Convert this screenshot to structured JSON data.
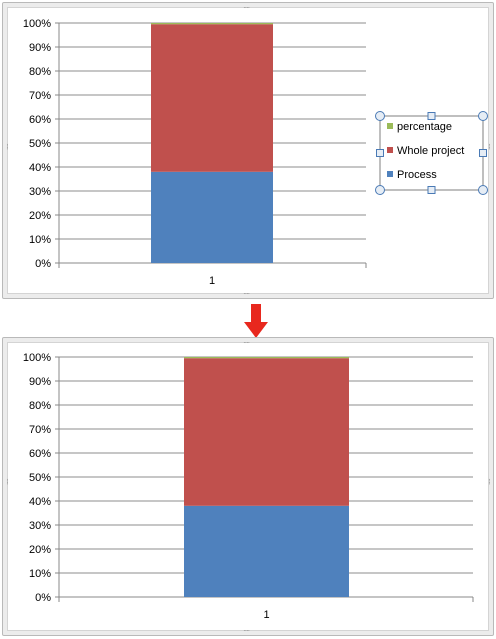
{
  "charts": [
    {
      "show_legend": true,
      "legend": [
        "percentage",
        "Whole project",
        "Process"
      ],
      "ticks": [
        "0%",
        "10%",
        "20%",
        "30%",
        "40%",
        "50%",
        "60%",
        "70%",
        "80%",
        "90%",
        "100%"
      ]
    },
    {
      "show_legend": false,
      "ticks": [
        "0%",
        "10%",
        "20%",
        "30%",
        "40%",
        "50%",
        "60%",
        "70%",
        "80%",
        "90%",
        "100%"
      ]
    }
  ],
  "chart_data": [
    {
      "type": "bar",
      "stacked": "percent",
      "categories": [
        "1"
      ],
      "series": [
        {
          "name": "Process",
          "values": [
            38
          ],
          "color": "#4f81bd"
        },
        {
          "name": "Whole project",
          "values": [
            61.5
          ],
          "color": "#c0504d"
        },
        {
          "name": "percentage",
          "values": [
            0.5
          ],
          "color": "#9bbb59"
        }
      ],
      "ylim": [
        0,
        100
      ],
      "grid": true,
      "legend_position": "right",
      "legend_selected": true
    },
    {
      "type": "bar",
      "stacked": "percent",
      "categories": [
        "1"
      ],
      "series": [
        {
          "name": "Process",
          "values": [
            38
          ],
          "color": "#4f81bd"
        },
        {
          "name": "Whole project",
          "values": [
            61.5
          ],
          "color": "#c0504d"
        },
        {
          "name": "percentage",
          "values": [
            0.5
          ],
          "color": "#9bbb59"
        }
      ],
      "ylim": [
        0,
        100
      ],
      "grid": true,
      "legend_position": "none"
    }
  ],
  "arrow": {
    "color": "#e8281e",
    "icon": "arrow-down-icon"
  }
}
